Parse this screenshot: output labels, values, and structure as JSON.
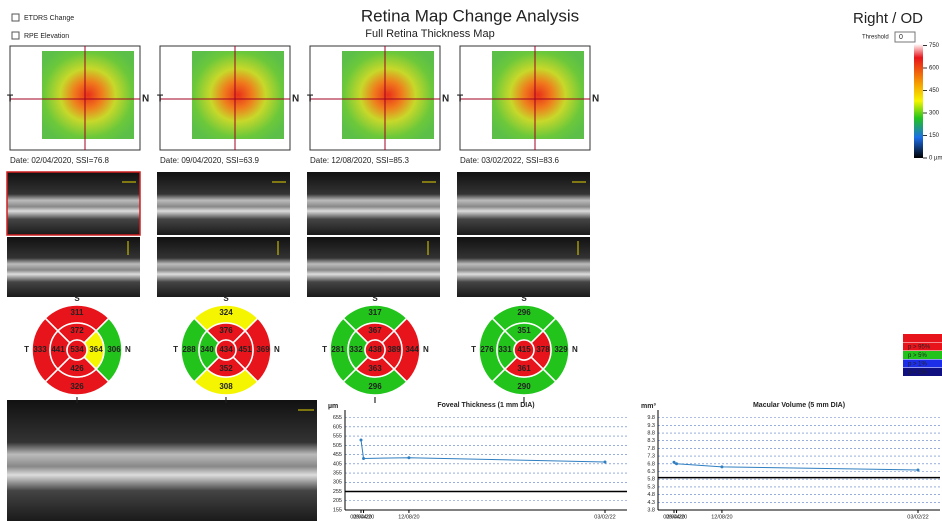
{
  "header": {
    "title": "Retina Map Change Analysis",
    "subtitle": "Full Retina Thickness Map",
    "eye": "Right / OD"
  },
  "controls": {
    "checkboxes": [
      "ETDRS Change",
      "RPE Elevation"
    ],
    "threshold_label": "Threshold",
    "threshold_value": "0"
  },
  "color_scale": {
    "lim": [
      0,
      760
    ],
    "ticks": [
      750,
      600,
      450,
      300,
      150,
      {
        "value": 0,
        "label": "0 µm"
      }
    ]
  },
  "map_labels": {
    "temporal": "T",
    "nasal": "N"
  },
  "etdrs_labels": {
    "superior": "S",
    "inferior": "I",
    "temporal": "T",
    "nasal": "N"
  },
  "scans": [
    {
      "date": "Date: 02/04/2020, SSI=76.8",
      "etdrs": [
        534,
        372,
        364,
        426,
        441,
        311,
        306,
        326,
        333
      ],
      "etdrs_colors": [
        "#e8141b",
        "#e8141b",
        "#f5f500",
        "#e8141b",
        "#e8141b",
        "#e8141b",
        "#22c41c",
        "#e8141b",
        "#e8141b"
      ]
    },
    {
      "date": "Date: 09/04/2020, SSI=63.9",
      "etdrs": [
        434,
        376,
        451,
        352,
        340,
        324,
        369,
        308,
        288
      ],
      "etdrs_colors": [
        "#e8141b",
        "#e8141b",
        "#e8141b",
        "#e8141b",
        "#22c41c",
        "#f5f500",
        "#e8141b",
        "#f5f500",
        "#22c41c"
      ]
    },
    {
      "date": "Date: 12/08/2020, SSI=85.3",
      "etdrs": [
        438,
        367,
        389,
        363,
        332,
        317,
        344,
        296,
        281
      ],
      "etdrs_colors": [
        "#e8141b",
        "#e8141b",
        "#e8141b",
        "#e8141b",
        "#22c41c",
        "#22c41c",
        "#e8141b",
        "#22c41c",
        "#22c41c"
      ]
    },
    {
      "date": "Date: 03/02/2022, SSI=83.6",
      "etdrs": [
        415,
        351,
        378,
        361,
        331,
        296,
        329,
        290,
        276
      ],
      "etdrs_colors": [
        "#e8141b",
        "#22c41c",
        "#e8141b",
        "#e8141b",
        "#22c41c",
        "#22c41c",
        "#22c41c",
        "#22c41c",
        "#22c41c"
      ]
    }
  ],
  "legend": [
    {
      "color": "#e8141b"
    },
    {
      "label": "p > 95%",
      "color": "#e8141b"
    },
    {
      "label": "p > 5%",
      "color": "#22c41c"
    },
    {
      "label": "p > 1%",
      "color": "#1c2ee8"
    },
    {
      "label": "p < 1%",
      "color": "#101080"
    }
  ],
  "chart_data": [
    {
      "type": "line",
      "title": "Foveal Thickness (1 mm DIA)",
      "y_label": "µm",
      "x": [
        "02/04/20",
        "09/04/20",
        "12/08/20",
        "03/02/22"
      ],
      "series": [
        {
          "color": "#2f7fc1",
          "values": [
            534,
            434,
            438,
            415
          ]
        }
      ],
      "reference": 255,
      "ylim": [
        155,
        680
      ],
      "yticks": [
        155,
        205,
        255,
        305,
        355,
        405,
        455,
        505,
        555,
        605,
        655
      ],
      "grid": true
    },
    {
      "type": "line",
      "title": "Macular Volume (5 mm DIA)",
      "y_label": "mm³",
      "x": [
        "02/04/20",
        "09/04/20",
        "12/08/20",
        "03/02/22"
      ],
      "series": [
        {
          "color": "#2f7fc1",
          "values": [
            6.9,
            6.8,
            6.6,
            6.4
          ]
        }
      ],
      "reference": 5.9,
      "ylim": [
        3.8,
        10.1
      ],
      "yticks": [
        3.8,
        4.3,
        4.8,
        5.3,
        5.8,
        6.3,
        6.8,
        7.3,
        7.8,
        8.3,
        8.8,
        9.3,
        9.8
      ],
      "grid": true
    }
  ]
}
